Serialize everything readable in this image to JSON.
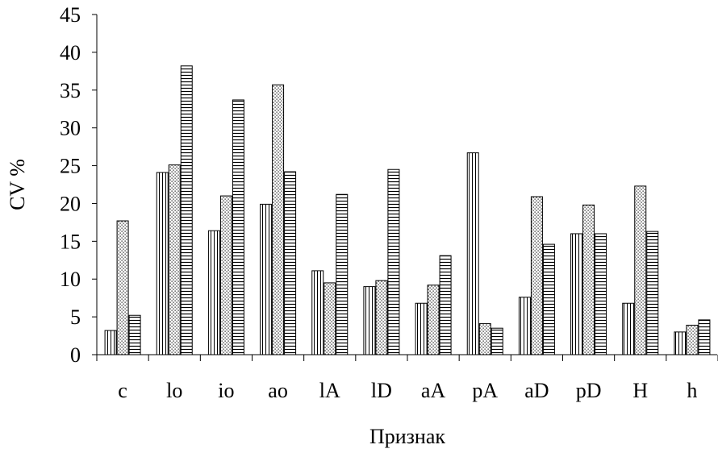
{
  "chart_data": {
    "type": "bar",
    "xlabel": "Признак",
    "ylabel": "CV %",
    "ylim": [
      0,
      45
    ],
    "yticks": [
      0,
      5,
      10,
      15,
      20,
      25,
      30,
      35,
      40,
      45
    ],
    "grid": false,
    "legend": "none",
    "categories": [
      "c",
      "lo",
      "io",
      "ao",
      "lA",
      "lD",
      "aA",
      "pA",
      "aD",
      "pD",
      "H",
      "h"
    ],
    "series": [
      {
        "pattern": "vertical-lines",
        "values": [
          3.2,
          24.1,
          16.4,
          19.9,
          11.1,
          9.0,
          6.8,
          26.7,
          7.6,
          16.0,
          6.8,
          3.0
        ]
      },
      {
        "pattern": "dots",
        "values": [
          17.7,
          25.1,
          21.0,
          35.7,
          9.5,
          9.8,
          9.2,
          4.1,
          20.9,
          19.8,
          22.3,
          3.9
        ]
      },
      {
        "pattern": "horizontal-lines",
        "values": [
          5.2,
          38.2,
          33.7,
          24.2,
          21.2,
          24.5,
          13.1,
          3.5,
          14.6,
          16.0,
          16.3,
          4.6
        ]
      }
    ]
  }
}
